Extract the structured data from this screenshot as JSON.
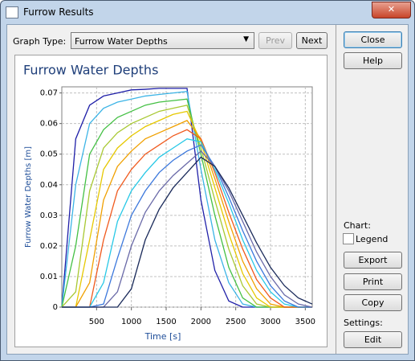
{
  "window": {
    "title": "Furrow Results",
    "graph_type_label": "Graph Type:",
    "graph_type_value": "Furrow Water Depths",
    "prev": "Prev",
    "next": "Next",
    "close": "Close",
    "help": "Help",
    "chart_label": "Chart:",
    "legend": "Legend",
    "export": "Export",
    "print": "Print",
    "copy": "Copy",
    "settings_label": "Settings:",
    "edit": "Edit"
  },
  "chart_data": {
    "type": "line",
    "title": "Furrow Water Depths",
    "x_label": "Time [s]",
    "y_label": "Furrow Water Depths [m]",
    "x": [
      0,
      200,
      400,
      600,
      800,
      1000,
      1200,
      1400,
      1600,
      1800,
      2000,
      2200,
      2400,
      2600,
      2800,
      3000,
      3200,
      3400,
      3600
    ],
    "xlim": [
      0,
      3600
    ],
    "xticks": [
      500,
      1000,
      1500,
      2000,
      2500,
      3000,
      3500
    ],
    "ylim": [
      0,
      0.072
    ],
    "yticks": [
      0,
      0.01,
      0.02,
      0.03,
      0.04,
      0.05,
      0.06,
      0.07
    ],
    "grid": true,
    "series": [
      {
        "color": "#1f1fa8",
        "values": [
          0,
          0.055,
          0.066,
          0.069,
          0.07,
          0.071,
          0.0712,
          0.0715,
          0.0715,
          0.0715,
          0.035,
          0.012,
          0.002,
          0,
          0,
          0,
          0,
          0,
          0
        ]
      },
      {
        "color": "#3cb4e6",
        "values": [
          0,
          0.04,
          0.06,
          0.065,
          0.067,
          0.068,
          0.069,
          0.0695,
          0.07,
          0.0705,
          0.045,
          0.022,
          0.008,
          0.001,
          0,
          0,
          0,
          0,
          0
        ]
      },
      {
        "color": "#44c044",
        "values": [
          0,
          0.02,
          0.05,
          0.058,
          0.062,
          0.064,
          0.066,
          0.067,
          0.0675,
          0.068,
          0.05,
          0.03,
          0.013,
          0.003,
          0,
          0,
          0,
          0,
          0
        ]
      },
      {
        "color": "#a8c832",
        "values": [
          0,
          0.005,
          0.038,
          0.052,
          0.057,
          0.06,
          0.062,
          0.064,
          0.065,
          0.066,
          0.052,
          0.035,
          0.019,
          0.007,
          0.001,
          0,
          0,
          0,
          0
        ]
      },
      {
        "color": "#e6c800",
        "values": [
          0,
          0,
          0.022,
          0.045,
          0.052,
          0.056,
          0.059,
          0.061,
          0.063,
          0.064,
          0.054,
          0.039,
          0.024,
          0.011,
          0.003,
          0,
          0,
          0,
          0
        ]
      },
      {
        "color": "#f0a000",
        "values": [
          0,
          0,
          0.008,
          0.035,
          0.046,
          0.051,
          0.055,
          0.057,
          0.059,
          0.061,
          0.055,
          0.042,
          0.028,
          0.015,
          0.006,
          0.001,
          0,
          0,
          0
        ]
      },
      {
        "color": "#f05a1e",
        "values": [
          0,
          0,
          0,
          0.022,
          0.038,
          0.045,
          0.05,
          0.053,
          0.056,
          0.058,
          0.055,
          0.044,
          0.031,
          0.019,
          0.009,
          0.003,
          0,
          0,
          0
        ]
      },
      {
        "color": "#28c8e6",
        "values": [
          0,
          0,
          0,
          0.008,
          0.028,
          0.038,
          0.044,
          0.049,
          0.052,
          0.055,
          0.054,
          0.045,
          0.034,
          0.022,
          0.012,
          0.005,
          0.001,
          0,
          0
        ]
      },
      {
        "color": "#3c78dc",
        "values": [
          0,
          0,
          0,
          0.001,
          0.016,
          0.03,
          0.038,
          0.044,
          0.048,
          0.051,
          0.053,
          0.046,
          0.036,
          0.025,
          0.015,
          0.007,
          0.002,
          0,
          0
        ]
      },
      {
        "color": "#6a6aa8",
        "values": [
          0,
          0,
          0,
          0,
          0.005,
          0.02,
          0.031,
          0.038,
          0.043,
          0.047,
          0.051,
          0.046,
          0.038,
          0.028,
          0.018,
          0.01,
          0.004,
          0.001,
          0
        ]
      },
      {
        "color": "#1a2a5a",
        "values": [
          0,
          0,
          0,
          0,
          0,
          0.006,
          0.022,
          0.032,
          0.039,
          0.044,
          0.049,
          0.046,
          0.039,
          0.03,
          0.021,
          0.013,
          0.007,
          0.003,
          0.001
        ]
      }
    ]
  }
}
